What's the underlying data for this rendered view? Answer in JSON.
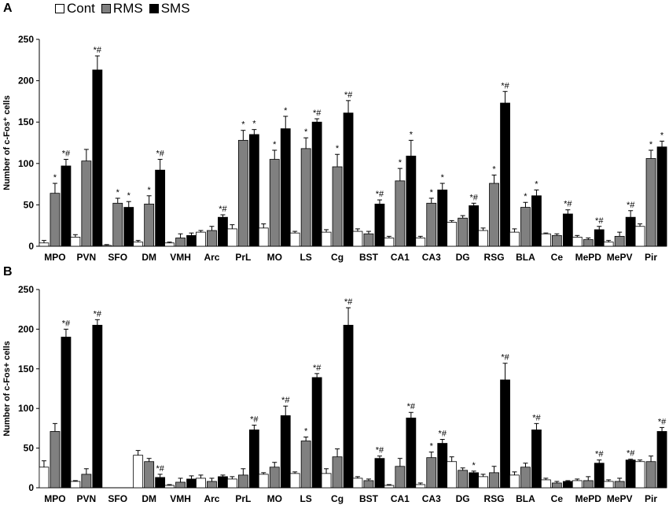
{
  "legend": {
    "items": [
      {
        "label": "Cont",
        "color": "#ffffff"
      },
      {
        "label": "RMS",
        "color": "#808080"
      },
      {
        "label": "SMS",
        "color": "#000000"
      }
    ]
  },
  "chart_data": [
    {
      "panel": "A",
      "type": "bar",
      "ylabel": "Number of c-Fos⁺ cells",
      "ylim": [
        0,
        250
      ],
      "yticks": [
        0,
        50,
        100,
        150,
        200,
        250
      ],
      "categories": [
        "MPO",
        "PVN",
        "SFO",
        "DM",
        "VMH",
        "Arc",
        "PrL",
        "MO",
        "LS",
        "Cg",
        "BST",
        "CA1",
        "CA3",
        "DG",
        "RSG",
        "BLA",
        "Ce",
        "MePD",
        "MePV",
        "Pir"
      ],
      "series": [
        {
          "name": "Cont",
          "color": "#ffffff",
          "values": [
            4,
            11,
            1,
            5,
            4,
            17,
            21,
            22,
            16,
            17,
            18,
            10,
            10,
            29,
            19,
            17,
            15,
            11,
            5,
            24
          ],
          "errors": [
            3,
            3,
            1,
            2,
            1,
            2,
            5,
            5,
            2,
            3,
            3,
            2,
            2,
            2,
            3,
            4,
            1,
            2,
            2,
            3
          ]
        },
        {
          "name": "RMS",
          "color": "#808080",
          "values": [
            64,
            103,
            52,
            51,
            10,
            19,
            128,
            105,
            118,
            96,
            15,
            79,
            52,
            34,
            76,
            47,
            13,
            8,
            12,
            106
          ],
          "errors": [
            12,
            14,
            6,
            10,
            5,
            5,
            12,
            11,
            13,
            15,
            3,
            15,
            6,
            3,
            10,
            6,
            2,
            2,
            5,
            10
          ],
          "annotations": [
            "*",
            "",
            "*",
            "*",
            "",
            "",
            "*",
            "*",
            "*",
            "*",
            "",
            "*",
            "*",
            "",
            "*",
            "*",
            "",
            "",
            "",
            "*"
          ]
        },
        {
          "name": "SMS",
          "color": "#000000",
          "values": [
            97,
            213,
            47,
            92,
            13,
            35,
            135,
            142,
            150,
            161,
            51,
            109,
            68,
            49,
            173,
            61,
            39,
            20,
            35,
            120
          ],
          "errors": [
            8,
            17,
            7,
            13,
            3,
            3,
            6,
            15,
            4,
            15,
            5,
            19,
            8,
            3,
            14,
            7,
            5,
            4,
            8,
            7
          ],
          "annotations": [
            "*#",
            "*#",
            "*",
            "*#",
            "",
            "*#",
            "*",
            "*",
            "*#",
            "*#",
            "*#",
            "*",
            "*",
            "*#",
            "*#",
            "*",
            "*#",
            "*#",
            "*#",
            "*"
          ]
        }
      ]
    },
    {
      "panel": "B",
      "type": "bar",
      "ylabel": "Number of c-Fos+ cells",
      "ylim": [
        0,
        250
      ],
      "yticks": [
        0,
        50,
        100,
        150,
        200,
        250
      ],
      "categories": [
        "MPO",
        "PVN",
        "SFO",
        "DM",
        "VMH",
        "Arc",
        "PrL",
        "MO",
        "LS",
        "Cg",
        "BST",
        "CA1",
        "CA3",
        "DG",
        "RSG",
        "BLA",
        "Ce",
        "MePD",
        "MePV",
        "Pir"
      ],
      "series": [
        {
          "name": "Cont",
          "color": "#ffffff",
          "values": [
            26,
            8,
            0,
            41,
            3,
            12,
            11,
            17,
            18,
            18,
            12,
            3,
            4,
            33,
            14,
            16,
            10,
            9,
            8,
            33
          ],
          "errors": [
            8,
            1,
            0,
            6,
            1,
            4,
            3,
            2,
            2,
            6,
            2,
            1,
            2,
            6,
            3,
            4,
            2,
            2,
            2,
            2
          ]
        },
        {
          "name": "RMS",
          "color": "#808080",
          "values": [
            71,
            17,
            0,
            33,
            7,
            8,
            16,
            26,
            59,
            39,
            9,
            27,
            38,
            22,
            19,
            26,
            6,
            9,
            8,
            33
          ],
          "errors": [
            10,
            7,
            0,
            4,
            5,
            4,
            8,
            6,
            5,
            10,
            2,
            10,
            7,
            3,
            8,
            5,
            2,
            5,
            4,
            7
          ],
          "annotations": [
            "",
            "",
            "",
            "",
            "",
            "",
            "",
            "",
            "*",
            "",
            "",
            "",
            "*",
            "",
            "",
            "",
            "",
            "",
            "",
            ""
          ]
        },
        {
          "name": "SMS",
          "color": "#000000",
          "values": [
            190,
            205,
            0,
            13,
            11,
            14,
            73,
            91,
            139,
            205,
            37,
            88,
            56,
            19,
            136,
            73,
            8,
            31,
            35,
            71
          ],
          "errors": [
            10,
            7,
            0,
            4,
            4,
            2,
            6,
            12,
            5,
            22,
            3,
            7,
            5,
            2,
            21,
            8,
            1,
            4,
            1,
            5
          ],
          "annotations": [
            "*#",
            "*#",
            "",
            "*#",
            "",
            "",
            "*#",
            "*#",
            "*#",
            "*#",
            "*#",
            "*#",
            "*#",
            "*",
            "*#",
            "*#",
            "",
            "*#",
            "*#",
            "*#"
          ]
        }
      ]
    }
  ]
}
